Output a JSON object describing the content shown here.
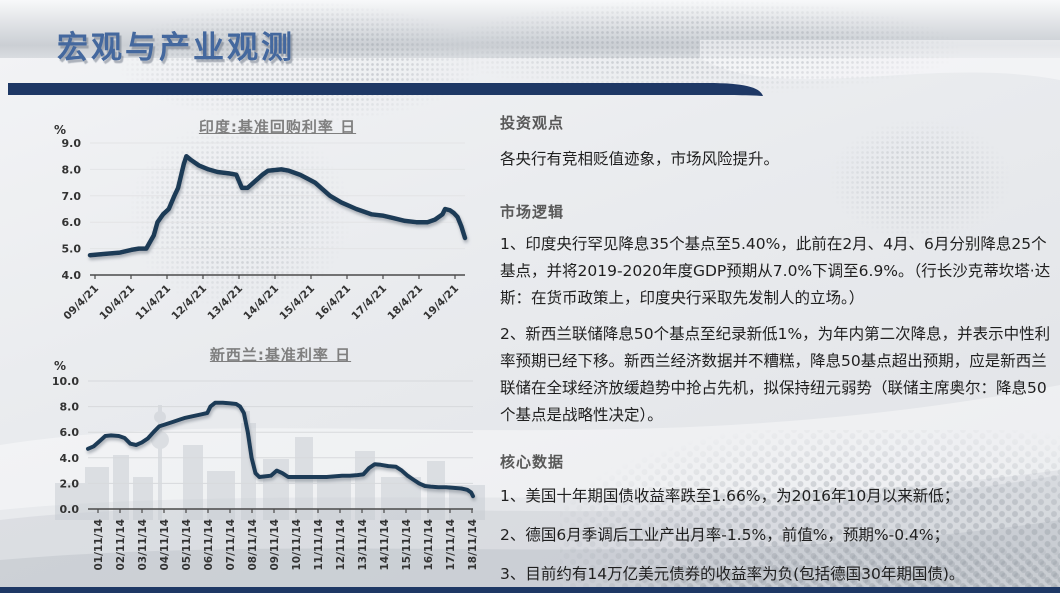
{
  "slide": {
    "title": "宏观与产业观测"
  },
  "colors": {
    "title_blue": "#44689e",
    "accent_navy": "#1e3865",
    "chart_line": "#1e3a57",
    "heading_gray": "#595959",
    "chart_title_gray": "#7f7f7f"
  },
  "chart_data": [
    {
      "type": "line",
      "title": "印度:基准回购利率 日",
      "unit": "%",
      "ylim": [
        4.0,
        9.0
      ],
      "y_ticks": [
        "9.0",
        "8.0",
        "7.0",
        "6.0",
        "5.0",
        "4.0"
      ],
      "x_tick_labels": [
        "09/4/21",
        "10/4/21",
        "11/4/21",
        "12/4/21",
        "13/4/21",
        "14/4/21",
        "15/4/21",
        "16/4/21",
        "17/4/21",
        "18/4/21",
        "19/4/21"
      ],
      "grid": "horizontal-faint",
      "legend": "none",
      "line_color": "#1e3a57",
      "series": [
        {
          "name": "印度:基准回购利率",
          "points": [
            [
              0,
              4.75
            ],
            [
              4,
              4.8
            ],
            [
              8,
              4.85
            ],
            [
              11,
              4.95
            ],
            [
              13,
              5.0
            ],
            [
              15,
              5.0
            ],
            [
              16,
              5.25
            ],
            [
              17,
              5.5
            ],
            [
              18,
              6.0
            ],
            [
              19.5,
              6.3
            ],
            [
              21,
              6.5
            ],
            [
              22.5,
              7.0
            ],
            [
              23.5,
              7.3
            ],
            [
              24.5,
              7.9
            ],
            [
              25,
              8.2
            ],
            [
              25.7,
              8.5
            ],
            [
              27,
              8.35
            ],
            [
              29,
              8.15
            ],
            [
              31.6,
              8.0
            ],
            [
              34,
              7.9
            ],
            [
              37,
              7.85
            ],
            [
              39,
              7.8
            ],
            [
              40.5,
              7.3
            ],
            [
              42,
              7.3
            ],
            [
              44,
              7.55
            ],
            [
              46,
              7.8
            ],
            [
              47.5,
              7.95
            ],
            [
              51,
              8.0
            ],
            [
              53,
              7.95
            ],
            [
              56,
              7.8
            ],
            [
              58,
              7.65
            ],
            [
              60,
              7.5
            ],
            [
              62,
              7.25
            ],
            [
              64,
              7.0
            ],
            [
              67,
              6.75
            ],
            [
              71,
              6.5
            ],
            [
              75,
              6.3
            ],
            [
              78,
              6.25
            ],
            [
              81,
              6.15
            ],
            [
              84,
              6.05
            ],
            [
              87,
              6.0
            ],
            [
              90,
              6.0
            ],
            [
              92,
              6.1
            ],
            [
              94,
              6.3
            ],
            [
              94.7,
              6.5
            ],
            [
              96,
              6.45
            ],
            [
              97,
              6.35
            ],
            [
              98,
              6.2
            ],
            [
              99,
              5.85
            ],
            [
              100,
              5.4
            ]
          ]
        }
      ]
    },
    {
      "type": "line",
      "title": "新西兰:基准利率 日",
      "unit": "%",
      "ylim": [
        0.0,
        10.0
      ],
      "y_ticks": [
        "10.0",
        "8.0",
        "6.0",
        "4.0",
        "2.0",
        "0.0"
      ],
      "x_tick_labels": [
        "01/11/14",
        "02/11/14",
        "03/11/14",
        "04/11/14",
        "05/11/14",
        "06/11/14",
        "07/11/14",
        "08/11/14",
        "09/11/14",
        "10/11/14",
        "11/11/14",
        "12/11/14",
        "13/11/14",
        "14/11/14",
        "15/11/14",
        "16/11/14",
        "17/11/14",
        "18/11/14"
      ],
      "grid": "horizontal",
      "legend": "none",
      "line_color": "#1e3a57",
      "series": [
        {
          "name": "新西兰:基准利率",
          "points": [
            [
              0,
              4.7
            ],
            [
              1.5,
              4.9
            ],
            [
              3,
              5.3
            ],
            [
              4.5,
              5.7
            ],
            [
              6,
              5.75
            ],
            [
              8,
              5.7
            ],
            [
              9.5,
              5.55
            ],
            [
              11,
              5.1
            ],
            [
              12.5,
              5.0
            ],
            [
              14,
              5.2
            ],
            [
              15.5,
              5.5
            ],
            [
              17,
              6.0
            ],
            [
              18.5,
              6.45
            ],
            [
              20,
              6.6
            ],
            [
              22,
              6.8
            ],
            [
              24,
              7.0
            ],
            [
              25,
              7.1
            ],
            [
              26.5,
              7.2
            ],
            [
              28,
              7.3
            ],
            [
              29.5,
              7.4
            ],
            [
              31,
              7.5
            ],
            [
              31.8,
              8.0
            ],
            [
              33,
              8.3
            ],
            [
              35,
              8.3
            ],
            [
              37,
              8.25
            ],
            [
              38.5,
              8.2
            ],
            [
              39.5,
              8.0
            ],
            [
              40.5,
              7.5
            ],
            [
              41.5,
              6.0
            ],
            [
              42.5,
              4.0
            ],
            [
              43.5,
              2.8
            ],
            [
              44.5,
              2.5
            ],
            [
              46,
              2.55
            ],
            [
              47.5,
              2.6
            ],
            [
              49,
              3.0
            ],
            [
              50.5,
              2.8
            ],
            [
              52,
              2.5
            ],
            [
              54,
              2.5
            ],
            [
              56,
              2.5
            ],
            [
              58,
              2.5
            ],
            [
              60,
              2.5
            ],
            [
              62,
              2.5
            ],
            [
              64,
              2.55
            ],
            [
              66,
              2.6
            ],
            [
              68,
              2.6
            ],
            [
              70,
              2.65
            ],
            [
              71.5,
              2.7
            ],
            [
              73,
              3.2
            ],
            [
              74.5,
              3.5
            ],
            [
              76,
              3.45
            ],
            [
              78,
              3.35
            ],
            [
              80,
              3.3
            ],
            [
              81.5,
              3.0
            ],
            [
              83,
              2.6
            ],
            [
              84.5,
              2.3
            ],
            [
              86,
              2.0
            ],
            [
              87.5,
              1.8
            ],
            [
              89,
              1.75
            ],
            [
              91,
              1.7
            ],
            [
              93,
              1.7
            ],
            [
              95,
              1.65
            ],
            [
              97,
              1.6
            ],
            [
              98.5,
              1.5
            ],
            [
              99.5,
              1.3
            ],
            [
              100,
              1.0
            ]
          ]
        }
      ]
    }
  ],
  "sections": [
    {
      "heading": "投资观点",
      "paragraphs": [
        "各央行有竞相贬值迹象，市场风险提升。"
      ]
    },
    {
      "heading": "市场逻辑",
      "paragraphs": [
        "1、印度央行罕见降息35个基点至5.40%，此前在2月、4月、6月分别降息25个基点，并将2019-2020年度GDP预期从7.0%下调至6.9%。（行长沙克蒂坎塔·达斯：在货币政策上，印度央行采取先发制人的立场。）",
        "2、新西兰联储降息50个基点至纪录新低1%，为年内第二次降息，并表示中性利率预期已经下移。新西兰经济数据并不糟糕，降息50基点超出预期，应是新西兰联储在全球经济放缓趋势中抢占先机，拟保持纽元弱势（联储主席奥尔：降息50个基点是战略性决定）。"
      ]
    },
    {
      "heading": "核心数据",
      "paragraphs": [
        "1、美国十年期国债收益率跌至1.66%，为2016年10月以来新低；",
        "2、德国6月季调后工业产出月率-1.5%，前值%，预期%-0.4%；",
        "3、目前约有14万亿美元债券的收益率为负(包括德国30年期国债)。"
      ]
    }
  ]
}
